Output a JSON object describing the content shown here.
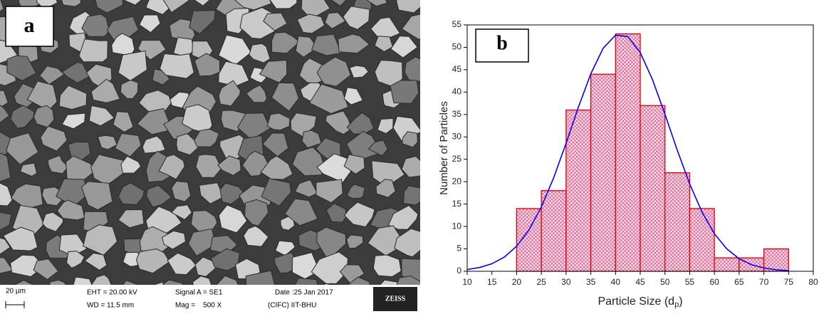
{
  "sem_image": {
    "panel_label": "a",
    "scale_bar": "20 µm",
    "eht": "EHT = 20.00 kV",
    "wd": "WD = 11.5 mm",
    "signal": "Signal A = SE1",
    "mag": "Mag =    500 X",
    "date": "Date :25 Jan 2017",
    "lab": "(CIFC) IIT-BHU",
    "logo": "ZEISS"
  },
  "chart_data": {
    "type": "histogram",
    "panel_label": "b",
    "x_label_parts": [
      "Particle Size (d",
      "p",
      ")"
    ],
    "y_label": "Number of Particles",
    "bins": [
      20,
      25,
      30,
      35,
      40,
      45,
      50,
      55,
      60,
      65,
      70,
      75
    ],
    "values": [
      14,
      18,
      36,
      44,
      53,
      37,
      22,
      14,
      3,
      3,
      5
    ],
    "color": "#e00000",
    "fit": {
      "color": "#0000ff",
      "x": [
        10,
        12.5,
        15,
        17.5,
        20,
        22.5,
        25,
        27.5,
        30,
        32.5,
        35,
        37.5,
        40,
        42.5,
        45,
        47.5,
        50,
        52.5,
        55,
        57.5,
        60,
        62.5,
        65,
        67.5,
        70,
        72.5,
        75
      ],
      "values": [
        0.39,
        0.84,
        1.69,
        3.16,
        5.59,
        9.24,
        14.36,
        20.91,
        28.59,
        36.66,
        44.1,
        49.79,
        52.73,
        52.39,
        48.84,
        42.72,
        35.06,
        26.99,
        19.5,
        13.21,
        8.4,
        5.01,
        2.8,
        1.47,
        0.73,
        0.34,
        0.15
      ]
    },
    "xlim": [
      10,
      80
    ],
    "ylim": [
      0,
      55
    ],
    "xticks": [
      10,
      15,
      20,
      25,
      30,
      35,
      40,
      45,
      50,
      55,
      60,
      65,
      70,
      75,
      80
    ],
    "yticks": [
      0,
      5,
      10,
      15,
      20,
      25,
      30,
      35,
      40,
      45,
      50,
      55
    ]
  }
}
